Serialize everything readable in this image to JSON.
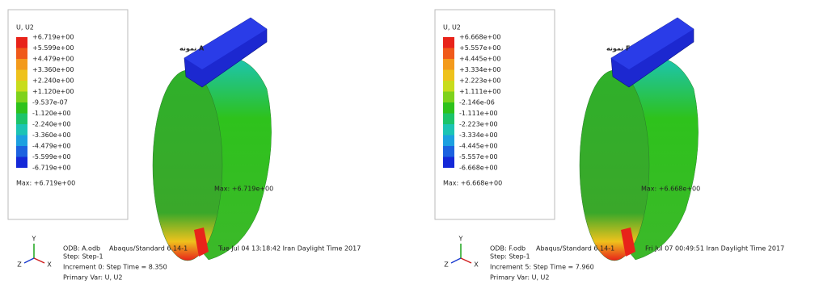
{
  "panels": [
    {
      "legend_title": "U, U2",
      "legend_labels": [
        "+6.719e+00",
        "+5.599e+00",
        "+4.479e+00",
        "+3.360e+00",
        "+2.240e+00",
        "+1.120e+00",
        "-9.537e-07",
        "-1.120e+00",
        "-2.240e+00",
        "-3.360e+00",
        "-4.479e+00",
        "-5.599e+00",
        "-6.719e+00"
      ],
      "max_label": "Max: +6.719e+00",
      "model_label": "نمونه A",
      "annotation": "Max: +6.719e+00",
      "triad": [
        "Y",
        "Z",
        "X"
      ],
      "footer": {
        "odb": "ODB:  A.odb",
        "solver": "Abaqus/Standard 6.14-1",
        "date": "Tue Jul 04 13:18:42 Iran Daylight Time 2017",
        "step": "Step: Step-1",
        "increment": "Increment    0: Step Time =    8.350",
        "primary_var": "Primary Var: U, U2"
      }
    },
    {
      "legend_title": "U, U2",
      "legend_labels": [
        "+6.668e+00",
        "+5.557e+00",
        "+4.445e+00",
        "+3.334e+00",
        "+2.223e+00",
        "+1.111e+00",
        "-2.146e-06",
        "-1.111e+00",
        "-2.223e+00",
        "-3.334e+00",
        "-4.445e+00",
        "-5.557e+00",
        "-6.668e+00"
      ],
      "max_label": "Max: +6.668e+00",
      "model_label": "نمونه F",
      "annotation": "Max: +6.668e+00",
      "triad": [
        "Y",
        "Z",
        "X"
      ],
      "footer": {
        "odb": "ODB:  F.odb",
        "solver": "Abaqus/Standard 6.14-1",
        "date": "Fri Jul 07 00:49:51 Iran Daylight Time 2017",
        "step": "Step: Step-1",
        "increment": "Increment    5: Step Time =    7.960",
        "primary_var": "Primary Var: U, U2"
      }
    }
  ],
  "legend_colors": [
    "#e8231a",
    "#f05a1a",
    "#f39a1c",
    "#eec21c",
    "#c8dc1c",
    "#7ed21c",
    "#2ec21c",
    "#1cc46a",
    "#1cc4b4",
    "#1ca0e0",
    "#1c62e0",
    "#1428d8"
  ]
}
